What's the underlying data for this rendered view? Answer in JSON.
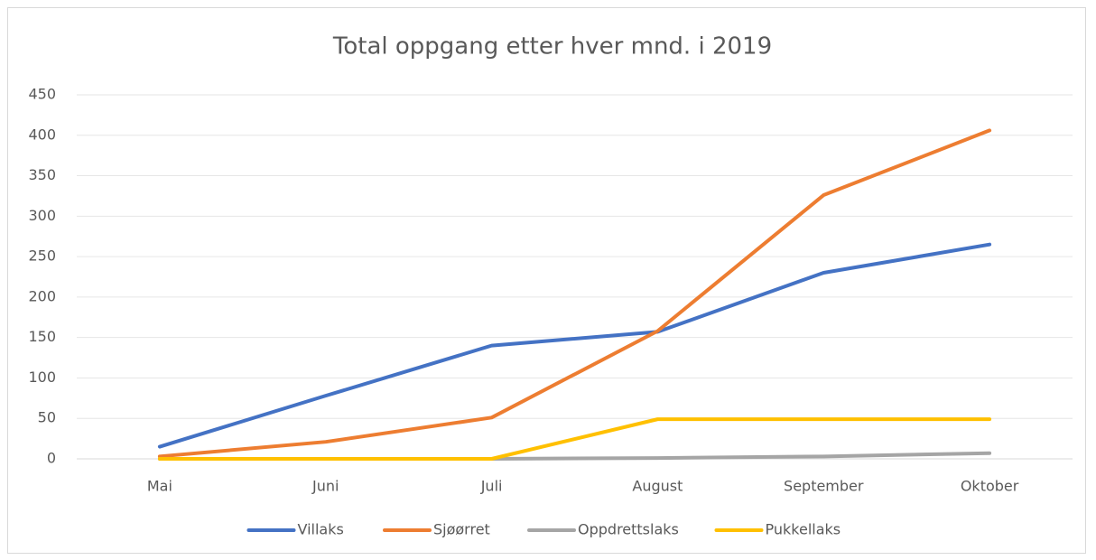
{
  "chart_data": {
    "type": "line",
    "title": "Total oppgang etter hver mnd. i 2019",
    "categories": [
      "Mai",
      "Juni",
      "Juli",
      "August",
      "September",
      "Oktober"
    ],
    "series": [
      {
        "name": "Villaks",
        "color": "#4472c4",
        "values": [
          15,
          78,
          140,
          157,
          230,
          265
        ]
      },
      {
        "name": "Sjøørret",
        "color": "#ed7d31",
        "values": [
          3,
          21,
          51,
          158,
          326,
          406
        ]
      },
      {
        "name": "Oppdrettslaks",
        "color": "#a5a5a5",
        "values": [
          0,
          0,
          0,
          1,
          3,
          7
        ]
      },
      {
        "name": "Pukkellaks",
        "color": "#ffc000",
        "values": [
          0,
          0,
          0,
          49,
          49,
          49
        ]
      }
    ],
    "ylim": [
      0,
      450
    ],
    "yticks": [
      0,
      50,
      100,
      150,
      200,
      250,
      300,
      350,
      400,
      450
    ],
    "grid": true,
    "legend": "bottom"
  }
}
